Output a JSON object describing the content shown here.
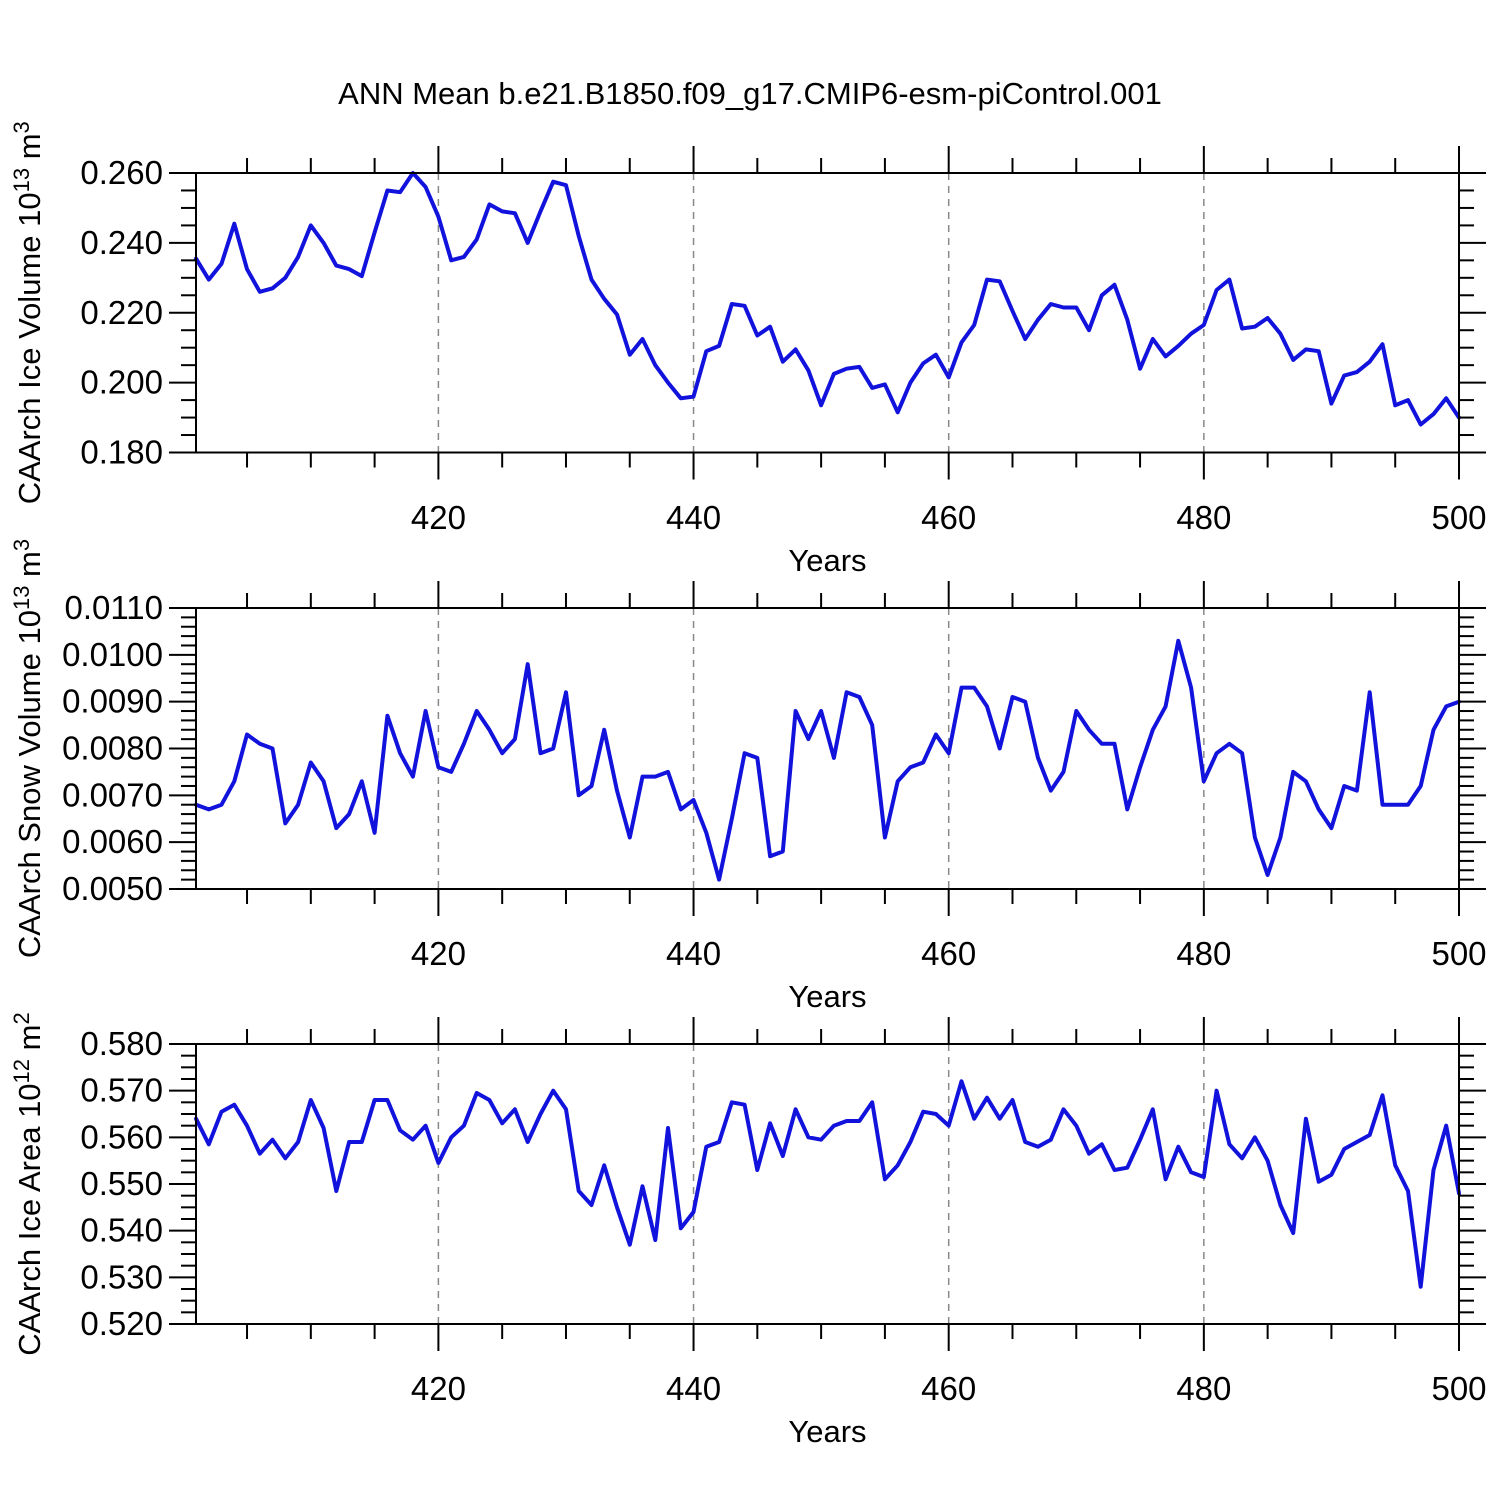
{
  "title": "ANN Mean b.e21.B1850.f09_g17.CMIP6-esm-piControl.001",
  "background": "#ffffff",
  "chart_data": [
    {
      "type": "line",
      "name": "caarch-ice-volume",
      "ylabel_prefix": "CAArch Ice Volume 10",
      "ylabel_exp": "13",
      "ylabel_unit": " m",
      "ylabel_unit_exp": "3",
      "xlabel": "Years",
      "x_start": 401,
      "x_end": 500,
      "ylim": [
        0.18,
        0.26
      ],
      "ytick_step": 0.02,
      "yminor_step": 0.005,
      "y_decimals": 3,
      "xticks": [
        420,
        440,
        460,
        480,
        500
      ],
      "xminor_step": 5,
      "grid_years": [
        420,
        440,
        460,
        480
      ],
      "grid_on": true,
      "legend": "none",
      "line_color": "#1212dd",
      "values": [
        0.2355,
        0.2295,
        0.234,
        0.2455,
        0.2325,
        0.226,
        0.227,
        0.23,
        0.236,
        0.245,
        0.24,
        0.2335,
        0.2325,
        0.2305,
        0.243,
        0.255,
        0.2545,
        0.26,
        0.256,
        0.2475,
        0.235,
        0.236,
        0.241,
        0.251,
        0.249,
        0.2485,
        0.24,
        0.249,
        0.2575,
        0.2565,
        0.242,
        0.2295,
        0.224,
        0.2195,
        0.208,
        0.2125,
        0.205,
        0.2,
        0.1955,
        0.196,
        0.209,
        0.2105,
        0.2225,
        0.222,
        0.2135,
        0.216,
        0.206,
        0.2095,
        0.2035,
        0.1935,
        0.2025,
        0.204,
        0.2045,
        0.1985,
        0.1995,
        0.1915,
        0.2,
        0.2055,
        0.208,
        0.2015,
        0.2115,
        0.2165,
        0.2295,
        0.229,
        0.2205,
        0.2125,
        0.218,
        0.2225,
        0.2215,
        0.2215,
        0.215,
        0.225,
        0.228,
        0.218,
        0.204,
        0.2125,
        0.2075,
        0.2105,
        0.214,
        0.2165,
        0.2265,
        0.2295,
        0.2155,
        0.216,
        0.2185,
        0.214,
        0.2065,
        0.2095,
        0.209,
        0.194,
        0.202,
        0.203,
        0.206,
        0.211,
        0.1935,
        0.195,
        0.188,
        0.191,
        0.1955,
        0.19
      ]
    },
    {
      "type": "line",
      "name": "caarch-snow-volume",
      "ylabel_prefix": "CAArch Snow Volume 10",
      "ylabel_exp": "13",
      "ylabel_unit": " m",
      "ylabel_unit_exp": "3",
      "xlabel": "Years",
      "x_start": 401,
      "x_end": 500,
      "ylim": [
        0.005,
        0.011
      ],
      "ytick_step": 0.001,
      "yminor_step": 0.0002,
      "y_decimals": 4,
      "xticks": [
        420,
        440,
        460,
        480,
        500
      ],
      "xminor_step": 5,
      "grid_years": [
        420,
        440,
        460,
        480
      ],
      "grid_on": true,
      "legend": "none",
      "line_color": "#1212dd",
      "values": [
        0.0068,
        0.0067,
        0.0068,
        0.0073,
        0.0083,
        0.0081,
        0.008,
        0.0064,
        0.0068,
        0.0077,
        0.0073,
        0.0063,
        0.0066,
        0.0073,
        0.0062,
        0.0087,
        0.0079,
        0.0074,
        0.0088,
        0.0076,
        0.0075,
        0.0081,
        0.0088,
        0.0084,
        0.0079,
        0.0082,
        0.0098,
        0.0079,
        0.008,
        0.0092,
        0.007,
        0.0072,
        0.0084,
        0.0071,
        0.0061,
        0.0074,
        0.0074,
        0.0075,
        0.0067,
        0.0069,
        0.0062,
        0.0052,
        0.0065,
        0.0079,
        0.0078,
        0.0057,
        0.0058,
        0.0088,
        0.0082,
        0.0088,
        0.0078,
        0.0092,
        0.0091,
        0.0085,
        0.0061,
        0.0073,
        0.0076,
        0.0077,
        0.0083,
        0.0079,
        0.0093,
        0.0093,
        0.0089,
        0.008,
        0.0091,
        0.009,
        0.0078,
        0.0071,
        0.0075,
        0.0088,
        0.0084,
        0.0081,
        0.0081,
        0.0067,
        0.0076,
        0.0084,
        0.0089,
        0.0103,
        0.0093,
        0.0073,
        0.0079,
        0.0081,
        0.0079,
        0.0061,
        0.0053,
        0.0061,
        0.0075,
        0.0073,
        0.0067,
        0.0063,
        0.0072,
        0.0071,
        0.0092,
        0.0068,
        0.0068,
        0.0068,
        0.0072,
        0.0084,
        0.0089,
        0.009
      ]
    },
    {
      "type": "line",
      "name": "caarch-ice-area",
      "ylabel_prefix": "CAArch Ice Area 10",
      "ylabel_exp": "12",
      "ylabel_unit": " m",
      "ylabel_unit_exp": "2",
      "xlabel": "Years",
      "x_start": 401,
      "x_end": 500,
      "ylim": [
        0.52,
        0.58
      ],
      "ytick_step": 0.01,
      "yminor_step": 0.0025,
      "y_decimals": 3,
      "xticks": [
        420,
        440,
        460,
        480,
        500
      ],
      "xminor_step": 5,
      "grid_years": [
        420,
        440,
        460,
        480
      ],
      "grid_on": true,
      "legend": "none",
      "line_color": "#1212dd",
      "values": [
        0.564,
        0.5585,
        0.5655,
        0.567,
        0.5625,
        0.5565,
        0.5595,
        0.5555,
        0.559,
        0.568,
        0.562,
        0.5485,
        0.559,
        0.559,
        0.568,
        0.568,
        0.5615,
        0.5595,
        0.5625,
        0.5545,
        0.56,
        0.5625,
        0.5695,
        0.568,
        0.563,
        0.566,
        0.559,
        0.565,
        0.57,
        0.566,
        0.5485,
        0.5455,
        0.554,
        0.545,
        0.537,
        0.5495,
        0.538,
        0.562,
        0.5405,
        0.544,
        0.558,
        0.559,
        0.5675,
        0.567,
        0.553,
        0.563,
        0.556,
        0.566,
        0.56,
        0.5595,
        0.5625,
        0.5635,
        0.5635,
        0.5675,
        0.551,
        0.554,
        0.559,
        0.5655,
        0.565,
        0.5625,
        0.572,
        0.564,
        0.5685,
        0.564,
        0.568,
        0.559,
        0.558,
        0.5595,
        0.566,
        0.5625,
        0.5565,
        0.5585,
        0.553,
        0.5535,
        0.5595,
        0.566,
        0.551,
        0.558,
        0.5525,
        0.5515,
        0.57,
        0.5585,
        0.5555,
        0.56,
        0.555,
        0.5455,
        0.5395,
        0.564,
        0.5505,
        0.552,
        0.5575,
        0.559,
        0.5605,
        0.569,
        0.554,
        0.5485,
        0.528,
        0.553,
        0.5625,
        0.548
      ]
    }
  ]
}
